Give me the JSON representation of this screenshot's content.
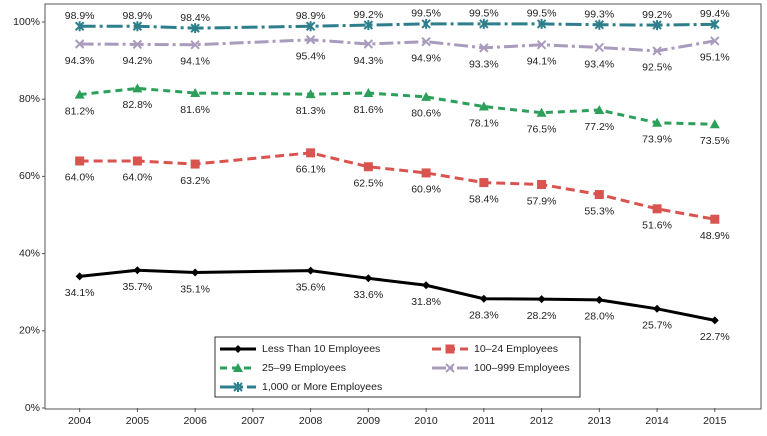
{
  "chart_data": {
    "type": "line",
    "x": [
      2004,
      2005,
      2006,
      2008,
      2009,
      2010,
      2011,
      2012,
      2013,
      2014,
      2015
    ],
    "xlim": [
      2003.4,
      2015.8
    ],
    "xticks": [
      2004,
      2005,
      2006,
      2007,
      2008,
      2009,
      2010,
      2011,
      2012,
      2013,
      2014,
      2015
    ],
    "ylim": [
      0,
      100
    ],
    "yticks": [
      {
        "value": 0,
        "label": "0%"
      },
      {
        "value": 20,
        "label": "20%"
      },
      {
        "value": 40,
        "label": "40%"
      },
      {
        "value": 60,
        "label": "60%"
      },
      {
        "value": 80,
        "label": "80%"
      },
      {
        "value": 100,
        "label": "100%"
      }
    ],
    "series": [
      {
        "name": "Less Than 10 Employees",
        "color": "#000000",
        "values": [
          34.1,
          35.7,
          35.1,
          35.6,
          33.6,
          31.8,
          28.3,
          28.2,
          28.0,
          25.7,
          22.7
        ],
        "value_labels": [
          "34.1%",
          "35.7%",
          "35.1%",
          "35.6%",
          "33.6%",
          "31.8%",
          "28.3%",
          "28.2%",
          "28.0%",
          "25.7%",
          "22.7%"
        ]
      },
      {
        "name": "10–24 Employees",
        "color": "#d9534f",
        "values": [
          64.0,
          64.0,
          63.2,
          66.1,
          62.5,
          60.9,
          58.4,
          57.9,
          55.3,
          51.6,
          48.9
        ],
        "value_labels": [
          "64.0%",
          "64.0%",
          "63.2%",
          "66.1%",
          "62.5%",
          "60.9%",
          "58.4%",
          "57.9%",
          "55.3%",
          "51.6%",
          "48.9%"
        ]
      },
      {
        "name": "25–99 Employees",
        "color": "#2ca05a",
        "values": [
          81.2,
          82.8,
          81.6,
          81.3,
          81.6,
          80.6,
          78.1,
          76.5,
          77.2,
          73.9,
          73.5
        ],
        "value_labels": [
          "81.2%",
          "82.8%",
          "81.6%",
          "81.3%",
          "81.6%",
          "80.6%",
          "78.1%",
          "76.5%",
          "77.2%",
          "73.9%",
          "73.5%"
        ]
      },
      {
        "name": "100–999 Employees",
        "color": "#a99bbd",
        "values": [
          94.3,
          94.2,
          94.1,
          95.4,
          94.3,
          94.9,
          93.3,
          94.1,
          93.4,
          92.5,
          95.1
        ],
        "value_labels": [
          "94.3%",
          "94.2%",
          "94.1%",
          "95.4%",
          "94.3%",
          "94.9%",
          "93.3%",
          "94.1%",
          "93.4%",
          "92.5%",
          "95.1%"
        ]
      },
      {
        "name": "1,000 or More Employees",
        "color": "#2e7f8c",
        "values": [
          98.9,
          98.9,
          98.4,
          98.9,
          99.2,
          99.5,
          99.5,
          99.5,
          99.3,
          99.2,
          99.4
        ],
        "value_labels": [
          "98.9%",
          "98.9%",
          "98.4%",
          "98.9%",
          "99.2%",
          "99.5%",
          "99.5%",
          "99.5%",
          "99.3%",
          "99.2%",
          "99.4%"
        ]
      }
    ]
  }
}
